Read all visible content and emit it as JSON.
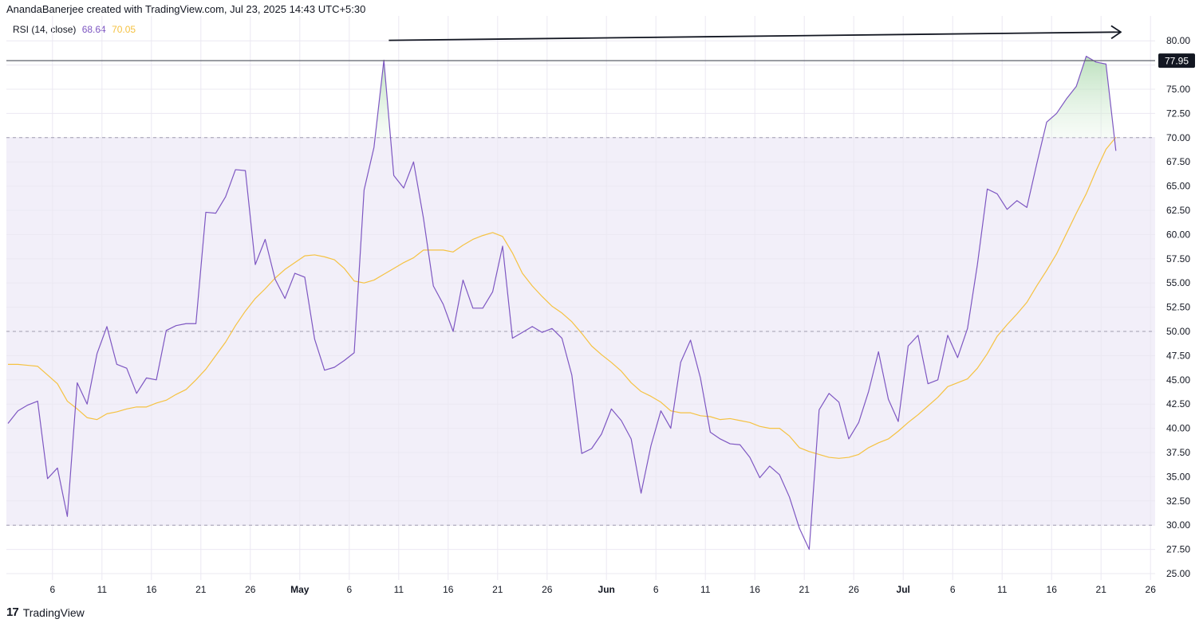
{
  "header": {
    "attribution": "AnandaBanerjee created with TradingView.com, Jul 23, 2025 14:43 UTC+5:30"
  },
  "legend": {
    "label": "RSI (14, close)",
    "rsi_value": "68.64",
    "ma_value": "70.05"
  },
  "footer": {
    "logo_mark": "17",
    "brand": "TradingView"
  },
  "colors": {
    "rsi_line": "#7e57c2",
    "ma_line": "#f5c242",
    "band_fill": "#f2eff9",
    "overbought_fill": "#c8e6c9",
    "price_label_bg": "#131722"
  },
  "chart_data": {
    "type": "line",
    "title": "",
    "ylim": [
      25,
      82
    ],
    "yticks": [
      "80.00",
      "77.50",
      "75.00",
      "72.50",
      "70.00",
      "67.50",
      "65.00",
      "62.50",
      "60.00",
      "57.50",
      "55.00",
      "52.50",
      "50.00",
      "47.50",
      "45.00",
      "42.50",
      "40.00",
      "37.50",
      "35.00",
      "32.50",
      "30.00",
      "27.50",
      "25.00"
    ],
    "xticks": [
      {
        "x": 4.5,
        "label": "6"
      },
      {
        "x": 9.5,
        "label": "11"
      },
      {
        "x": 14.5,
        "label": "16"
      },
      {
        "x": 19.5,
        "label": "21"
      },
      {
        "x": 24.5,
        "label": "26"
      },
      {
        "x": 29.5,
        "label": "May"
      },
      {
        "x": 34.5,
        "label": "6"
      },
      {
        "x": 39.5,
        "label": "11"
      },
      {
        "x": 44.5,
        "label": "16"
      },
      {
        "x": 49.5,
        "label": "21"
      },
      {
        "x": 54.5,
        "label": "26"
      },
      {
        "x": 60.5,
        "label": "Jun"
      },
      {
        "x": 65.5,
        "label": "6"
      },
      {
        "x": 70.5,
        "label": "11"
      },
      {
        "x": 75.5,
        "label": "16"
      },
      {
        "x": 80.5,
        "label": "21"
      },
      {
        "x": 85.5,
        "label": "26"
      },
      {
        "x": 90.5,
        "label": "Jul"
      },
      {
        "x": 95.5,
        "label": "6"
      },
      {
        "x": 100.5,
        "label": "11"
      },
      {
        "x": 105.5,
        "label": "16"
      },
      {
        "x": 110.5,
        "label": "21"
      },
      {
        "x": 115.5,
        "label": "26"
      }
    ],
    "bands": {
      "upper": 70,
      "middle": 50,
      "lower": 30
    },
    "horizontal_line": {
      "value": 77.95,
      "label": "77.95"
    },
    "series": [
      {
        "name": "RSI (14, close)",
        "values": [
          40.5,
          41.8,
          42.4,
          42.8,
          34.8,
          35.9,
          30.9,
          44.7,
          42.5,
          47.7,
          50.5,
          46.6,
          46.2,
          43.6,
          45.2,
          45.0,
          50.1,
          50.6,
          50.8,
          50.8,
          62.3,
          62.2,
          63.9,
          66.7,
          66.6,
          56.9,
          59.5,
          55.4,
          53.4,
          56.0,
          55.6,
          49.2,
          46.0,
          46.3,
          47.0,
          47.8,
          64.6,
          69.0,
          78.0,
          66.1,
          64.8,
          67.5,
          61.7,
          54.7,
          52.8,
          50.0,
          55.3,
          52.4,
          52.4,
          54.1,
          58.8,
          49.3,
          49.9,
          50.5,
          49.9,
          50.3,
          49.3,
          45.5,
          37.4,
          37.9,
          39.4,
          42.0,
          40.8,
          38.9,
          33.3,
          38.2,
          41.8,
          40.0,
          46.8,
          49.1,
          45.2,
          39.6,
          38.9,
          38.4,
          38.3,
          37.0,
          34.9,
          36.1,
          35.2,
          32.9,
          29.7,
          27.5,
          41.9,
          43.6,
          42.7,
          38.9,
          40.6,
          43.8,
          47.9,
          43.0,
          40.7,
          48.5,
          49.6,
          44.6,
          45.0,
          49.6,
          47.3,
          50.3,
          56.9,
          64.7,
          64.2,
          62.6,
          63.5,
          62.8,
          67.3,
          71.6,
          72.5,
          74.0,
          75.3,
          78.4,
          77.8,
          77.6,
          68.64
        ]
      },
      {
        "name": "RSI-based MA",
        "values": [
          46.6,
          46.6,
          46.5,
          46.4,
          45.5,
          44.6,
          42.8,
          42.0,
          41.1,
          40.9,
          41.5,
          41.7,
          42.0,
          42.2,
          42.2,
          42.6,
          42.9,
          43.5,
          44.0,
          45.0,
          46.1,
          47.5,
          48.9,
          50.6,
          52.1,
          53.4,
          54.4,
          55.5,
          56.4,
          57.1,
          57.8,
          57.9,
          57.7,
          57.4,
          56.5,
          55.2,
          55.0,
          55.3,
          55.9,
          56.5,
          57.1,
          57.6,
          58.4,
          58.4,
          58.4,
          58.2,
          58.9,
          59.5,
          59.9,
          60.2,
          59.8,
          58.1,
          56.0,
          54.7,
          53.6,
          52.6,
          51.9,
          51.0,
          49.8,
          48.5,
          47.6,
          46.8,
          45.9,
          44.7,
          43.8,
          43.3,
          42.7,
          41.8,
          41.6,
          41.6,
          41.3,
          41.2,
          40.9,
          41.0,
          40.8,
          40.6,
          40.2,
          40.0,
          40.0,
          39.2,
          38.0,
          37.6,
          37.3,
          37.0,
          36.9,
          37.0,
          37.3,
          38.0,
          38.5,
          38.9,
          39.7,
          40.6,
          41.4,
          42.3,
          43.2,
          44.3,
          44.7,
          45.1,
          46.2,
          47.7,
          49.5,
          50.7,
          51.8,
          53.0,
          54.7,
          56.3,
          58.0,
          60.1,
          62.2,
          64.2,
          66.6,
          68.8,
          70.05
        ]
      }
    ],
    "annotations": [
      {
        "type": "arrow",
        "from": {
          "x": 38.5,
          "y": 80.05
        },
        "to": {
          "x": 112.5,
          "y": 80.9
        }
      }
    ]
  }
}
